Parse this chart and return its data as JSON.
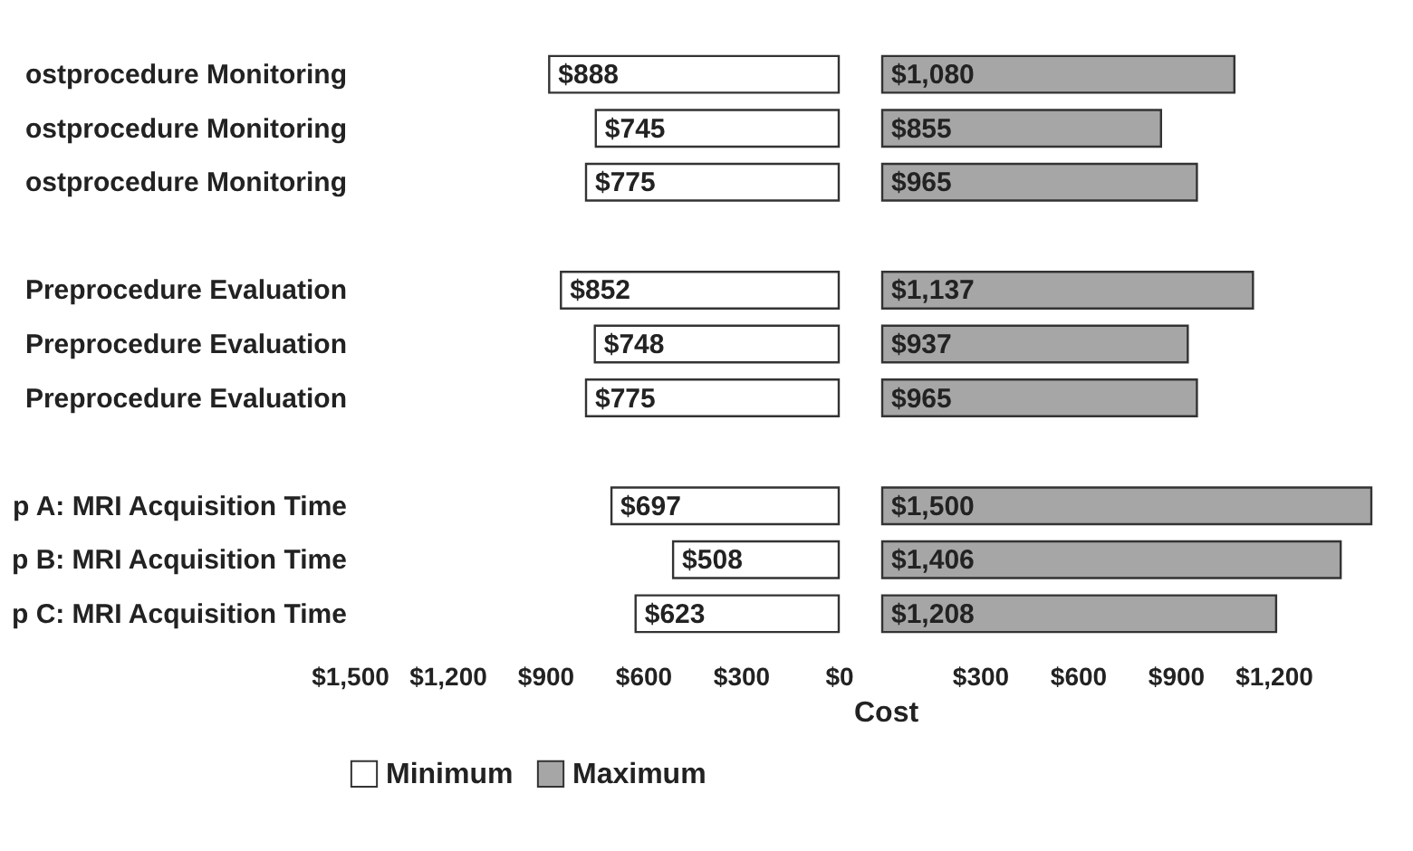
{
  "chart_data": [
    {
      "type": "bar",
      "orientation": "horizontal",
      "categories": [
        "ostprocedure Monitoring",
        "ostprocedure Monitoring",
        "ostprocedure Monitoring",
        null,
        "Preprocedure Evaluation",
        "Preprocedure Evaluation",
        "Preprocedure Evaluation",
        null,
        "p A: MRI Acquisition Time",
        "p B: MRI Acquisition Time",
        "p C: MRI Acquisition Time"
      ],
      "series": [
        {
          "name": "Minimum",
          "color": "#ffffff",
          "values": [
            888,
            745,
            775,
            null,
            852,
            748,
            775,
            null,
            697,
            508,
            623
          ],
          "value_labels": [
            "$888",
            "$745",
            "$775",
            null,
            "$852",
            "$748",
            "$775",
            null,
            "$697",
            "$508",
            "$623"
          ]
        }
      ],
      "xlim": [
        1500,
        0
      ],
      "xticks": [
        {
          "value": 1500,
          "label": "$1,500"
        },
        {
          "value": 1200,
          "label": "$1,200"
        },
        {
          "value": 900,
          "label": "$900"
        },
        {
          "value": 600,
          "label": "$600"
        },
        {
          "value": 300,
          "label": "$300"
        },
        {
          "value": 0,
          "label": "$0"
        }
      ],
      "grid": false,
      "legend": "bottom left"
    },
    {
      "type": "bar",
      "orientation": "horizontal",
      "xlabel": "Cost",
      "series": [
        {
          "name": "Maximum",
          "color": "#a6a6a6",
          "values": [
            1080,
            855,
            965,
            null,
            1137,
            937,
            965,
            null,
            1500,
            1406,
            1208
          ],
          "value_labels": [
            "$1,080",
            "$855",
            "$965",
            null,
            "$1,137",
            "$937",
            "$965",
            null,
            "$1,500",
            "$1,406",
            "$1,208"
          ]
        }
      ],
      "xlim": [
        0,
        1500
      ],
      "xticks": [
        {
          "value": 300,
          "label": "$300"
        },
        {
          "value": 600,
          "label": "$600"
        },
        {
          "value": 900,
          "label": "$900"
        },
        {
          "value": 1200,
          "label": "$1,200"
        }
      ],
      "tick_labels": "x",
      "grid": false,
      "legend": "bottom left"
    }
  ]
}
